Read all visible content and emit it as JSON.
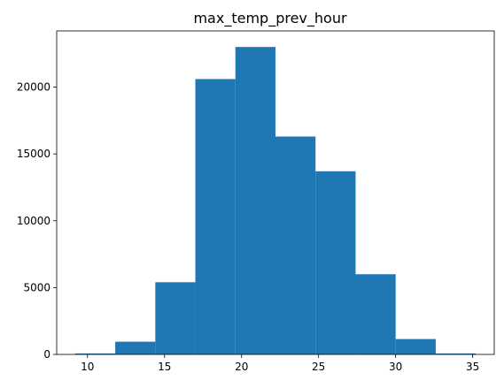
{
  "chart_data": {
    "type": "bar",
    "title": "max_temp_prev_hour",
    "xlabel": "",
    "ylabel": "",
    "bins": [
      [
        9.2,
        11.8
      ],
      [
        11.8,
        14.4
      ],
      [
        14.4,
        17.0
      ],
      [
        17.0,
        19.6
      ],
      [
        19.6,
        22.2
      ],
      [
        22.2,
        24.8
      ],
      [
        24.8,
        27.4
      ],
      [
        27.4,
        30.0
      ],
      [
        30.0,
        32.6
      ],
      [
        32.6,
        35.2
      ]
    ],
    "values": [
      70,
      950,
      5400,
      20600,
      23000,
      16300,
      13700,
      6000,
      1150,
      70
    ],
    "xlim": [
      8.0,
      36.4
    ],
    "ylim": [
      0,
      24200
    ],
    "xticks": [
      10,
      15,
      20,
      25,
      30,
      35
    ],
    "yticks": [
      0,
      5000,
      10000,
      15000,
      20000
    ],
    "bar_color": "#1f77b4",
    "grid": false,
    "legend": "none"
  }
}
